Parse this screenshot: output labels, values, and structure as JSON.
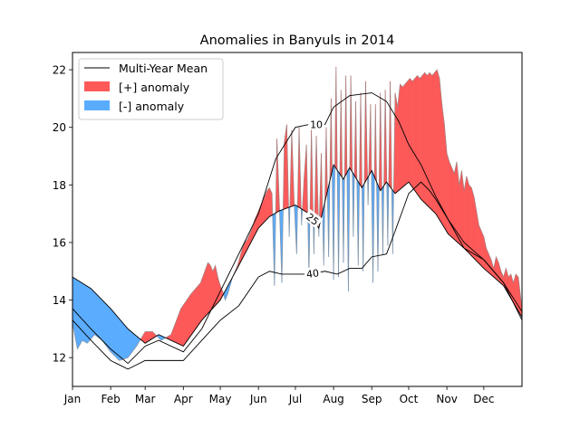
{
  "chart_data": {
    "type": "area",
    "title": "Anomalies in Banyuls in 2014",
    "xlabel": "",
    "ylabel": "",
    "x_ticks": [
      "Jan",
      "Feb",
      "Mar",
      "Apr",
      "May",
      "Jun",
      "Jul",
      "Aug",
      "Sep",
      "Oct",
      "Nov",
      "Dec"
    ],
    "y_ticks": [
      "12",
      "14",
      "16",
      "18",
      "20",
      "22"
    ],
    "xlim": [
      0,
      365
    ],
    "ylim": [
      11.0,
      22.6
    ],
    "grid": false,
    "legend": {
      "placement": "top-left",
      "entries": [
        {
          "label": "Multi-Year Mean",
          "kind": "line",
          "color": "#000000"
        },
        {
          "label": "[+] anomaly",
          "kind": "patch",
          "color": "#fd5959"
        },
        {
          "label": "[-] anomaly",
          "kind": "patch",
          "color": "#5aacff"
        }
      ]
    },
    "contour_labels": [
      "10",
      "25",
      "40"
    ],
    "colors": {
      "positive": "#fd5959",
      "negative": "#5aacff",
      "mean": "#000000",
      "edge": "#888888"
    },
    "series": [
      {
        "name": "10",
        "x": [
          0,
          15,
          31,
          45,
          59,
          70,
          90,
          105,
          120,
          135,
          151,
          165,
          181,
          192,
          205,
          212,
          225,
          243,
          255,
          265,
          273,
          283,
          295,
          305,
          318,
          334,
          350,
          365
        ],
        "values": [
          13.7,
          13.0,
          12.3,
          11.8,
          12.4,
          12.6,
          12.2,
          13.0,
          14.3,
          15.6,
          17.0,
          18.9,
          20.0,
          20.1,
          20.1,
          20.7,
          21.1,
          21.2,
          20.9,
          20.2,
          19.4,
          18.7,
          17.6,
          16.8,
          16.0,
          15.4,
          14.6,
          13.6
        ]
      },
      {
        "name": "25",
        "x": [
          0,
          15,
          31,
          45,
          59,
          70,
          90,
          105,
          120,
          135,
          151,
          160,
          168,
          181,
          192,
          200,
          212,
          220,
          225,
          235,
          243,
          250,
          255,
          262,
          273,
          283,
          295,
          305,
          318,
          334,
          350,
          365
        ],
        "values": [
          14.8,
          14.4,
          13.7,
          13.0,
          12.5,
          12.8,
          12.4,
          13.3,
          14.0,
          15.2,
          16.5,
          16.9,
          17.1,
          17.3,
          17.0,
          16.5,
          18.7,
          18.2,
          18.6,
          17.9,
          18.5,
          17.8,
          18.1,
          17.7,
          18.1,
          17.5,
          17.0,
          16.3,
          15.8,
          15.1,
          14.5,
          13.4
        ]
      },
      {
        "name": "40",
        "x": [
          0,
          15,
          31,
          45,
          59,
          70,
          90,
          105,
          120,
          135,
          151,
          160,
          170,
          181,
          192,
          205,
          215,
          225,
          235,
          243,
          255,
          262,
          273,
          283,
          290,
          295,
          305,
          318,
          334,
          350,
          365
        ],
        "values": [
          13.3,
          12.6,
          11.9,
          11.6,
          11.9,
          11.9,
          11.9,
          12.6,
          13.3,
          13.8,
          14.8,
          15.0,
          14.9,
          14.9,
          14.9,
          15.0,
          14.9,
          15.1,
          15.1,
          15.5,
          15.6,
          16.4,
          17.7,
          18.1,
          17.8,
          17.5,
          16.8,
          15.8,
          15.4,
          14.6,
          13.3
        ]
      }
    ],
    "observed_2014": {
      "x": [
        0,
        4,
        8,
        12,
        18,
        24,
        31,
        38,
        45,
        52,
        59,
        65,
        72,
        80,
        88,
        96,
        104,
        110,
        112,
        114,
        116,
        118,
        120,
        122,
        124,
        126,
        128,
        130,
        132,
        134,
        136,
        138,
        140,
        142,
        144,
        146,
        148,
        150,
        152,
        154,
        156,
        158,
        160,
        162,
        164,
        166,
        168,
        170,
        172,
        174,
        176,
        178,
        180,
        182,
        184,
        186,
        188,
        190,
        192,
        194,
        196,
        198,
        200,
        202,
        204,
        206,
        208,
        210,
        212,
        214,
        216,
        218,
        220,
        222,
        224,
        226,
        228,
        230,
        232,
        234,
        236,
        238,
        240,
        242,
        244,
        246,
        248,
        250,
        252,
        254,
        256,
        258,
        260,
        262,
        264,
        266,
        268,
        270,
        272,
        274,
        276,
        278,
        280,
        282,
        284,
        286,
        288,
        290,
        292,
        294,
        296,
        298,
        300,
        302,
        304,
        306,
        308,
        310,
        312,
        314,
        316,
        318,
        320,
        322,
        324,
        326,
        328,
        330,
        332,
        334,
        336,
        338,
        340,
        342,
        344,
        346,
        348,
        350,
        352,
        354,
        356,
        358,
        360,
        362,
        365
      ],
      "values": [
        13.2,
        12.3,
        12.6,
        12.5,
        12.8,
        12.6,
        12.2,
        11.9,
        12.0,
        12.4,
        12.9,
        12.9,
        12.6,
        12.8,
        13.7,
        14.2,
        14.6,
        15.3,
        15.2,
        15.0,
        15.2,
        14.8,
        14.5,
        14.3,
        14.0,
        14.2,
        14.5,
        14.8,
        15.0,
        15.2,
        15.5,
        15.8,
        16.0,
        16.1,
        16.3,
        16.5,
        16.8,
        17.0,
        17.2,
        17.4,
        17.6,
        17.8,
        17.9,
        17.7,
        14.5,
        19.6,
        17.3,
        14.6,
        19.5,
        20.1,
        16.2,
        19.9,
        17.4,
        15.6,
        20.0,
        16.6,
        18.2,
        19.4,
        14.8,
        20.0,
        15.6,
        19.7,
        16.2,
        19.1,
        15.2,
        20.0,
        15.5,
        21.0,
        14.7,
        22.1,
        14.8,
        21.3,
        15.3,
        21.8,
        14.3,
        21.8,
        16.2,
        20.9,
        15.2,
        21.2,
        15.0,
        21.6,
        17.3,
        20.8,
        14.6,
        20.8,
        15.0,
        21.2,
        15.6,
        21.3,
        15.9,
        21.6,
        15.6,
        21.2,
        20.7,
        21.5,
        21.4,
        21.5,
        21.6,
        21.7,
        21.6,
        21.7,
        21.8,
        21.7,
        21.8,
        21.9,
        21.8,
        21.9,
        21.8,
        21.9,
        22.0,
        21.7,
        20.8,
        20.1,
        19.1,
        18.8,
        18.6,
        18.4,
        18.8,
        18.0,
        18.5,
        17.8,
        18.3,
        18.0,
        17.9,
        17.6,
        17.1,
        16.6,
        16.4,
        16.2,
        15.8,
        15.6,
        15.4,
        15.1,
        15.5,
        15.3,
        15.0,
        14.8,
        15.1,
        14.8,
        14.9,
        14.6,
        14.9,
        14.8,
        13.7
      ]
    }
  }
}
